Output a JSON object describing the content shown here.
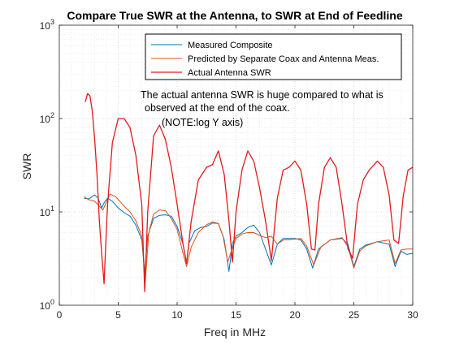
{
  "chart_data": {
    "type": "line",
    "title": "Compare True SWR at the Antenna, to SWR at End of Feedline",
    "xlabel": "Freq in MHz",
    "ylabel": "SWR",
    "xlim": [
      0,
      30
    ],
    "ylim": [
      1,
      1000
    ],
    "yscale": "log",
    "grid": "major and minor, dotted",
    "legend_position": "top-right",
    "x_ticks": [
      0,
      5,
      10,
      15,
      20,
      25,
      30
    ],
    "x_tick_labels": [
      "0",
      "5",
      "10",
      "15",
      "20",
      "25",
      "30"
    ],
    "y_ticks": [
      1,
      10,
      100,
      1000
    ],
    "y_tick_labels": [
      {
        "base": "10",
        "exp": "0"
      },
      {
        "base": "10",
        "exp": "1"
      },
      {
        "base": "10",
        "exp": "2"
      },
      {
        "base": "10",
        "exp": "3"
      }
    ],
    "annotation": [
      "The actual antenna SWR is huge compared to what is",
      "observed at the end of the coax.",
      "(NOTE:log Y axis)"
    ],
    "series": [
      {
        "name": "Measured Composite",
        "color": "#0072BD",
        "x": [
          2.1,
          2.5,
          3.0,
          3.3,
          3.6,
          3.8,
          4.1,
          4.5,
          5.0,
          5.5,
          6.0,
          6.5,
          7.0,
          7.25,
          7.5,
          8.0,
          8.5,
          9.0,
          9.5,
          10.0,
          10.5,
          10.8,
          11.0,
          11.5,
          12.0,
          12.5,
          13.0,
          13.5,
          14.0,
          14.4,
          14.7,
          15.0,
          15.5,
          16.0,
          16.5,
          17.0,
          17.5,
          18.0,
          18.5,
          19.0,
          19.5,
          20.0,
          20.5,
          21.0,
          21.5,
          22.0,
          23.0,
          24.0,
          24.5,
          25.0,
          25.5,
          26.0,
          27.0,
          28.0,
          28.5,
          29.0,
          29.5,
          30.0
        ],
        "y": [
          14,
          13.8,
          15.2,
          14.0,
          11.0,
          12.5,
          14.0,
          13.0,
          11.0,
          9.8,
          9.0,
          7.2,
          5.0,
          2.2,
          5.5,
          8.5,
          9.2,
          9.3,
          9.0,
          7.0,
          4.5,
          2.8,
          4.6,
          6.3,
          6.8,
          7.0,
          7.6,
          7.5,
          5.0,
          2.3,
          4.6,
          5.5,
          6.0,
          6.8,
          7.2,
          6.0,
          4.0,
          2.7,
          4.5,
          5.2,
          5.2,
          5.2,
          5.0,
          4.0,
          2.5,
          4.0,
          5.0,
          5.2,
          4.5,
          2.6,
          4.0,
          4.4,
          4.8,
          4.5,
          2.6,
          3.8,
          3.5,
          3.6
        ]
      },
      {
        "name": "Predicted by Separate Coax and Antenna Meas.",
        "color": "#D95319",
        "x": [
          2.1,
          2.5,
          3.0,
          3.4,
          3.7,
          3.9,
          4.3,
          4.8,
          5.5,
          6.0,
          6.5,
          7.0,
          7.3,
          7.6,
          8.0,
          8.5,
          9.0,
          9.5,
          10.0,
          10.6,
          10.8,
          11.2,
          11.8,
          12.5,
          13.0,
          13.5,
          13.9,
          14.3,
          14.6,
          15.0,
          15.5,
          16.0,
          16.5,
          17.0,
          17.5,
          18.0,
          18.5,
          19.0,
          20.0,
          20.5,
          21.0,
          21.6,
          22.2,
          23.0,
          24.0,
          24.5,
          25.0,
          25.5,
          26.0,
          27.0,
          28.0,
          28.5,
          29.0,
          29.5,
          30.0
        ],
        "y": [
          14.5,
          13.5,
          13.0,
          11.5,
          10.5,
          12.0,
          15.5,
          14.5,
          11.5,
          10.0,
          8.0,
          5.5,
          1.8,
          6.0,
          9.5,
          10.5,
          10.3,
          8.5,
          6.5,
          3.2,
          2.6,
          4.2,
          6.0,
          7.3,
          7.8,
          7.5,
          5.5,
          2.9,
          3.8,
          5.2,
          5.8,
          6.0,
          6.0,
          5.6,
          5.3,
          5.5,
          4.5,
          5.0,
          5.1,
          5.2,
          4.3,
          2.7,
          4.2,
          5.0,
          5.3,
          4.2,
          2.5,
          3.8,
          4.3,
          4.8,
          5.0,
          2.8,
          3.9,
          4.0,
          4.0
        ]
      },
      {
        "name": "Actual Antenna SWR",
        "color": "#E41A1C",
        "x": [
          2.2,
          2.4,
          2.6,
          2.8,
          3.0,
          3.2,
          3.4,
          3.6,
          3.8,
          3.9,
          4.1,
          4.5,
          5.0,
          5.5,
          6.0,
          6.5,
          7.0,
          7.25,
          7.5,
          8.0,
          8.5,
          9.0,
          9.5,
          10.0,
          10.5,
          10.8,
          11.2,
          11.8,
          12.5,
          13.0,
          13.5,
          14.0,
          14.4,
          14.7,
          15.0,
          15.5,
          16.0,
          16.5,
          17.0,
          17.5,
          18.0,
          18.5,
          19.0,
          19.5,
          20.0,
          20.5,
          21.0,
          21.4,
          21.7,
          22.0,
          22.5,
          23.0,
          23.5,
          24.0,
          24.5,
          24.9,
          25.3,
          25.8,
          26.3,
          27.0,
          27.5,
          28.0,
          28.4,
          28.8,
          29.2,
          29.6,
          30.0
        ],
        "y": [
          150,
          185,
          175,
          120,
          60,
          25,
          8,
          3.5,
          1.7,
          3.5,
          12,
          55,
          100,
          100,
          80,
          40,
          12,
          1.4,
          10,
          65,
          85,
          60,
          30,
          12,
          4.5,
          2.8,
          8,
          22,
          30,
          32,
          45,
          25,
          8,
          2.9,
          10,
          28,
          45,
          35,
          18,
          8,
          3.0,
          14,
          28,
          30,
          35,
          28,
          12,
          4.0,
          3.9,
          12,
          30,
          38,
          30,
          12,
          4.0,
          3.2,
          12,
          22,
          28,
          35,
          30,
          15,
          5.0,
          4.6,
          15,
          28,
          30
        ]
      }
    ]
  }
}
